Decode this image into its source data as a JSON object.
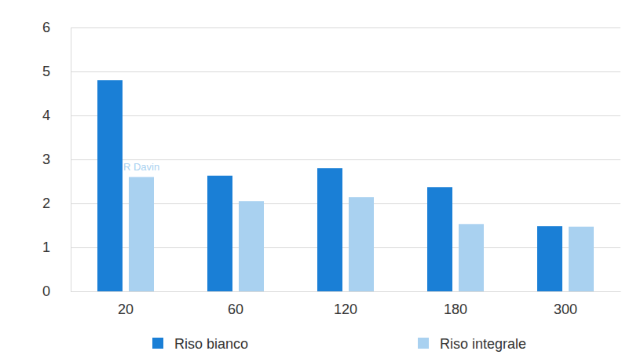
{
  "chart_data": {
    "type": "bar",
    "categories": [
      "20",
      "60",
      "120",
      "180",
      "300"
    ],
    "series": [
      {
        "name": "Riso bianco",
        "color": "#1a7fd6",
        "values": [
          4.8,
          2.63,
          2.8,
          2.37,
          1.48
        ]
      },
      {
        "name": "Riso integrale",
        "color": "#a9d1f0",
        "values": [
          2.6,
          2.05,
          2.14,
          1.53,
          1.47
        ]
      }
    ],
    "ylim": [
      0,
      6
    ],
    "yticks": [
      0,
      1,
      2,
      3,
      4,
      5,
      6
    ],
    "grid": true,
    "legend": "bottom",
    "annotations": [
      {
        "text": "R Davin",
        "category": "20",
        "y": 2.75
      }
    ]
  }
}
